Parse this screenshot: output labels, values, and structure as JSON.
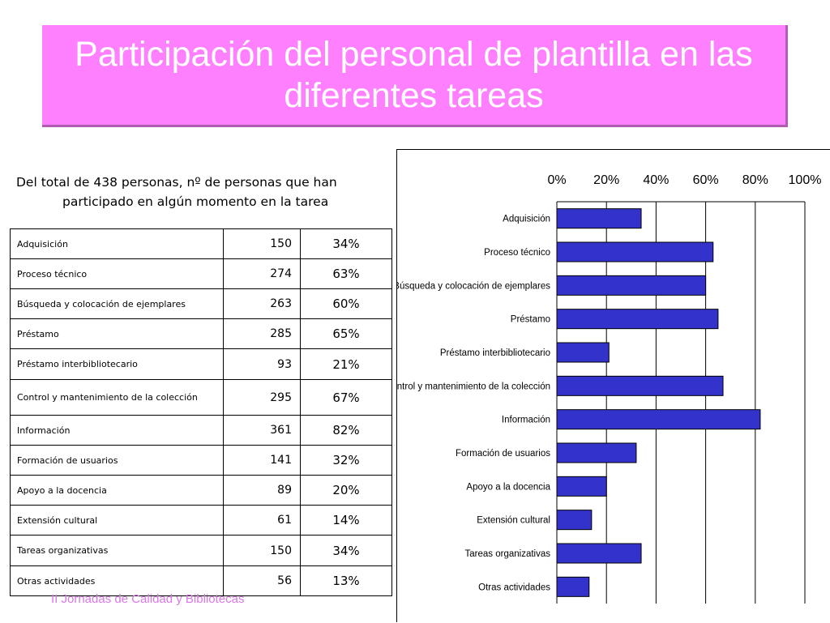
{
  "title": "Participación del personal de plantilla en las diferentes tareas",
  "subtitle_line1": "Del total de 438 personas, nº de personas que han",
  "subtitle_line2": "participado en algún momento en la tarea",
  "table": [
    {
      "task": "Adquisición",
      "count": "150",
      "pct": "34%"
    },
    {
      "task": "Proceso técnico",
      "count": "274",
      "pct": "63%"
    },
    {
      "task": "Búsqueda y colocación de ejemplares",
      "count": "263",
      "pct": "60%"
    },
    {
      "task": "Préstamo",
      "count": "285",
      "pct": "65%"
    },
    {
      "task": "Préstamo interbibliotecario",
      "count": "93",
      "pct": "21%"
    },
    {
      "task": "Control y mantenimiento de la colección",
      "count": "295",
      "pct": "67%"
    },
    {
      "task": "Información",
      "count": "361",
      "pct": "82%"
    },
    {
      "task": "Formación de usuarios",
      "count": "141",
      "pct": "32%"
    },
    {
      "task": "Apoyo a la docencia",
      "count": "89",
      "pct": "20%"
    },
    {
      "task": "Extensión cultural",
      "count": "61",
      "pct": "14%"
    },
    {
      "task": "Tareas organizativas",
      "count": "150",
      "pct": "34%"
    },
    {
      "task": "Otras actividades",
      "count": "56",
      "pct": "13%"
    }
  ],
  "chart_data": {
    "type": "bar",
    "orientation": "horizontal",
    "categories": [
      "Adquisición",
      "Proceso técnico",
      "Búsqueda y colocación de ejemplares",
      "Préstamo",
      "Préstamo interbibliotecario",
      "Control y mantenimiento de la colección",
      "Información",
      "Formación de usuarios",
      "Apoyo a la docencia",
      "Extensión cultural",
      "Tareas organizativas",
      "Otras actividades"
    ],
    "values": [
      34,
      63,
      60,
      65,
      21,
      67,
      82,
      32,
      20,
      14,
      34,
      13
    ],
    "xlim": [
      0,
      100
    ],
    "x_ticks": [
      "0%",
      "20%",
      "40%",
      "60%",
      "80%",
      "100%"
    ],
    "x_axis_position": "top",
    "grid": true,
    "bar_color": "#3333cc"
  },
  "footer": "II Jornadas de Calidad y Bibliotecas"
}
